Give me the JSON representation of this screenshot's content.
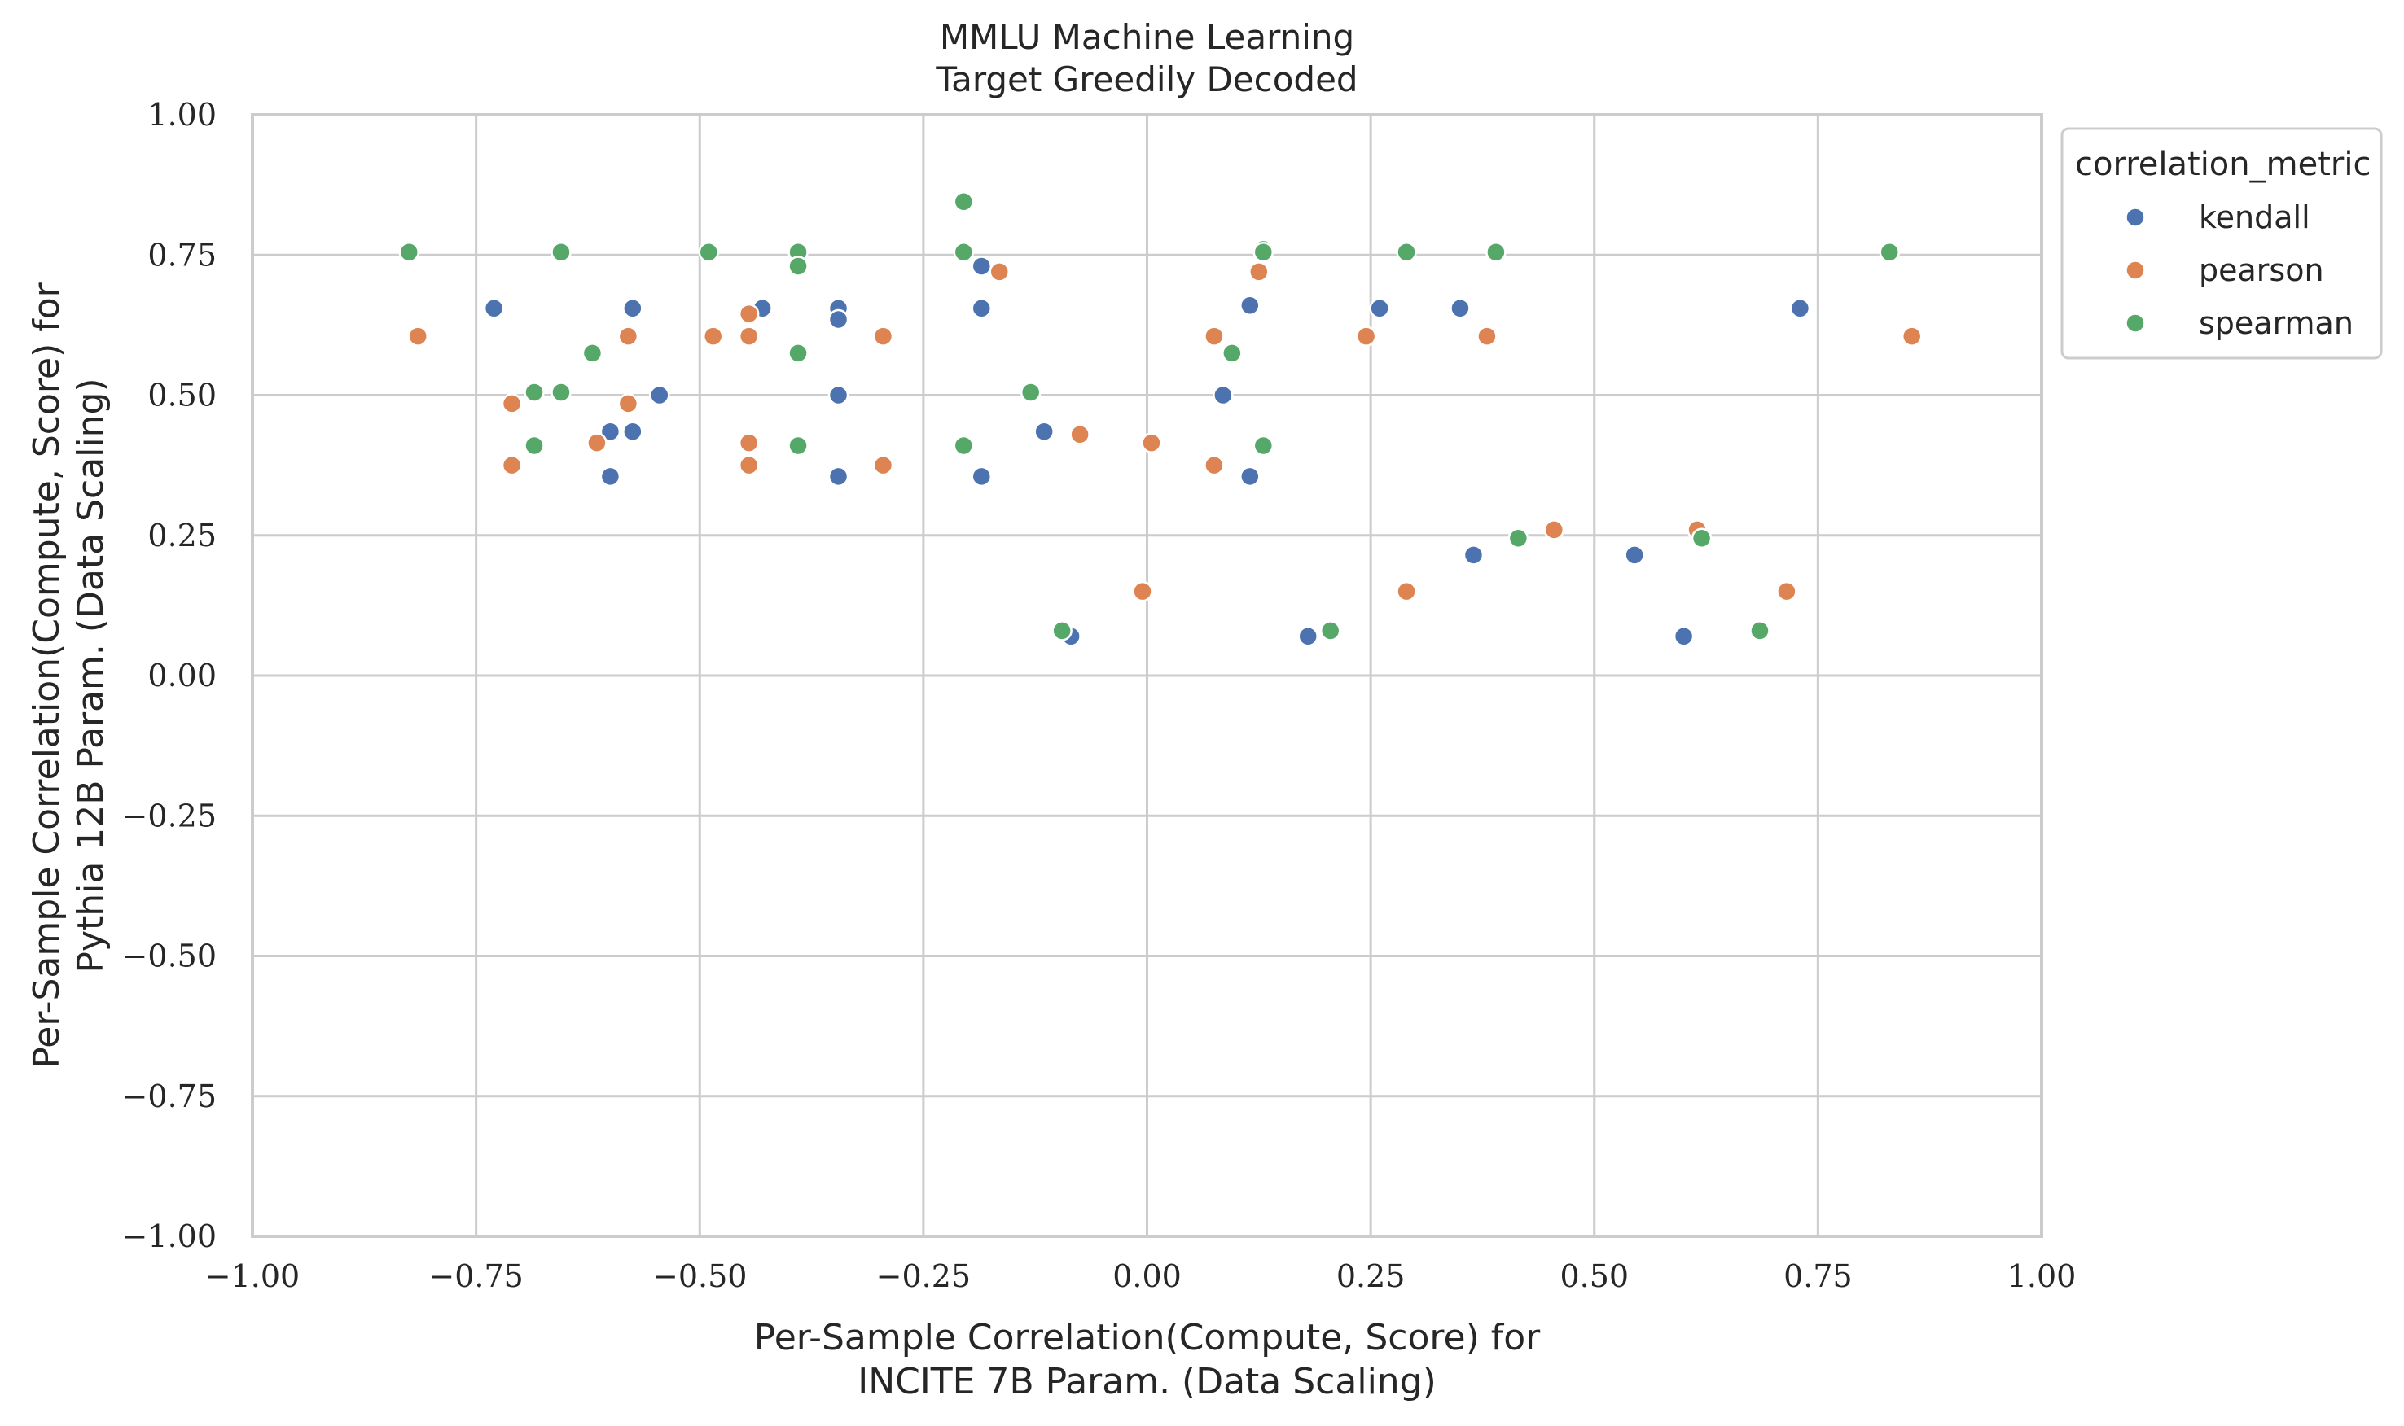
{
  "chart_data": {
    "type": "scatter",
    "title": "MMLU Machine Learning\nTarget Greedily Decoded",
    "xlabel": "Per-Sample Correlation(Compute, Score) for\nINCITE 7B Param. (Data Scaling)",
    "ylabel": "Per-Sample Correlation(Compute, Score) for\nPythia 12B Param. (Data Scaling)",
    "xlim": [
      -1.0,
      1.0
    ],
    "ylim": [
      -1.0,
      1.0
    ],
    "xticks": [
      "−1.00",
      "−0.75",
      "−0.50",
      "−0.25",
      "0.00",
      "0.25",
      "0.50",
      "0.75",
      "1.00"
    ],
    "yticks": [
      "−1.00",
      "−0.75",
      "−0.50",
      "−0.25",
      "0.00",
      "0.25",
      "0.50",
      "0.75",
      "1.00"
    ],
    "grid": true,
    "legend_title": "correlation_metric",
    "legend_position": "outside upper-right",
    "series": [
      {
        "name": "kendall",
        "color": "#4c72b0",
        "points": [
          [
            -0.73,
            0.655
          ],
          [
            -0.6,
            0.435
          ],
          [
            -0.6,
            0.355
          ],
          [
            -0.575,
            0.655
          ],
          [
            -0.575,
            0.435
          ],
          [
            -0.545,
            0.5
          ],
          [
            -0.43,
            0.655
          ],
          [
            -0.345,
            0.655
          ],
          [
            -0.345,
            0.635
          ],
          [
            -0.345,
            0.5
          ],
          [
            -0.345,
            0.355
          ],
          [
            -0.185,
            0.73
          ],
          [
            -0.185,
            0.655
          ],
          [
            -0.185,
            0.355
          ],
          [
            -0.115,
            0.435
          ],
          [
            -0.085,
            0.07
          ],
          [
            0.085,
            0.5
          ],
          [
            0.115,
            0.66
          ],
          [
            0.115,
            0.355
          ],
          [
            0.13,
            0.76
          ],
          [
            0.18,
            0.07
          ],
          [
            0.26,
            0.655
          ],
          [
            0.35,
            0.655
          ],
          [
            0.365,
            0.215
          ],
          [
            0.545,
            0.215
          ],
          [
            0.6,
            0.07
          ],
          [
            0.73,
            0.655
          ]
        ]
      },
      {
        "name": "pearson",
        "color": "#dd8452",
        "points": [
          [
            -0.815,
            0.605
          ],
          [
            -0.71,
            0.485
          ],
          [
            -0.71,
            0.375
          ],
          [
            -0.615,
            0.415
          ],
          [
            -0.58,
            0.605
          ],
          [
            -0.58,
            0.485
          ],
          [
            -0.485,
            0.605
          ],
          [
            -0.445,
            0.645
          ],
          [
            -0.445,
            0.605
          ],
          [
            -0.445,
            0.415
          ],
          [
            -0.445,
            0.375
          ],
          [
            -0.295,
            0.605
          ],
          [
            -0.295,
            0.375
          ],
          [
            -0.165,
            0.72
          ],
          [
            -0.075,
            0.43
          ],
          [
            -0.005,
            0.15
          ],
          [
            0.005,
            0.415
          ],
          [
            0.075,
            0.605
          ],
          [
            0.075,
            0.375
          ],
          [
            0.125,
            0.72
          ],
          [
            0.245,
            0.605
          ],
          [
            0.29,
            0.15
          ],
          [
            0.38,
            0.605
          ],
          [
            0.455,
            0.26
          ],
          [
            0.615,
            0.26
          ],
          [
            0.715,
            0.15
          ],
          [
            0.855,
            0.605
          ]
        ]
      },
      {
        "name": "spearman",
        "color": "#55a868",
        "points": [
          [
            -0.825,
            0.755
          ],
          [
            -0.685,
            0.505
          ],
          [
            -0.685,
            0.41
          ],
          [
            -0.655,
            0.755
          ],
          [
            -0.655,
            0.505
          ],
          [
            -0.62,
            0.575
          ],
          [
            -0.49,
            0.755
          ],
          [
            -0.39,
            0.755
          ],
          [
            -0.39,
            0.73
          ],
          [
            -0.39,
            0.575
          ],
          [
            -0.39,
            0.41
          ],
          [
            -0.205,
            0.845
          ],
          [
            -0.205,
            0.755
          ],
          [
            -0.205,
            0.41
          ],
          [
            -0.13,
            0.505
          ],
          [
            -0.095,
            0.08
          ],
          [
            0.095,
            0.575
          ],
          [
            0.13,
            0.76
          ],
          [
            0.13,
            0.755
          ],
          [
            0.13,
            0.41
          ],
          [
            0.205,
            0.08
          ],
          [
            0.29,
            0.755
          ],
          [
            0.39,
            0.755
          ],
          [
            0.415,
            0.245
          ],
          [
            0.62,
            0.245
          ],
          [
            0.685,
            0.08
          ],
          [
            0.83,
            0.755
          ]
        ]
      }
    ]
  }
}
